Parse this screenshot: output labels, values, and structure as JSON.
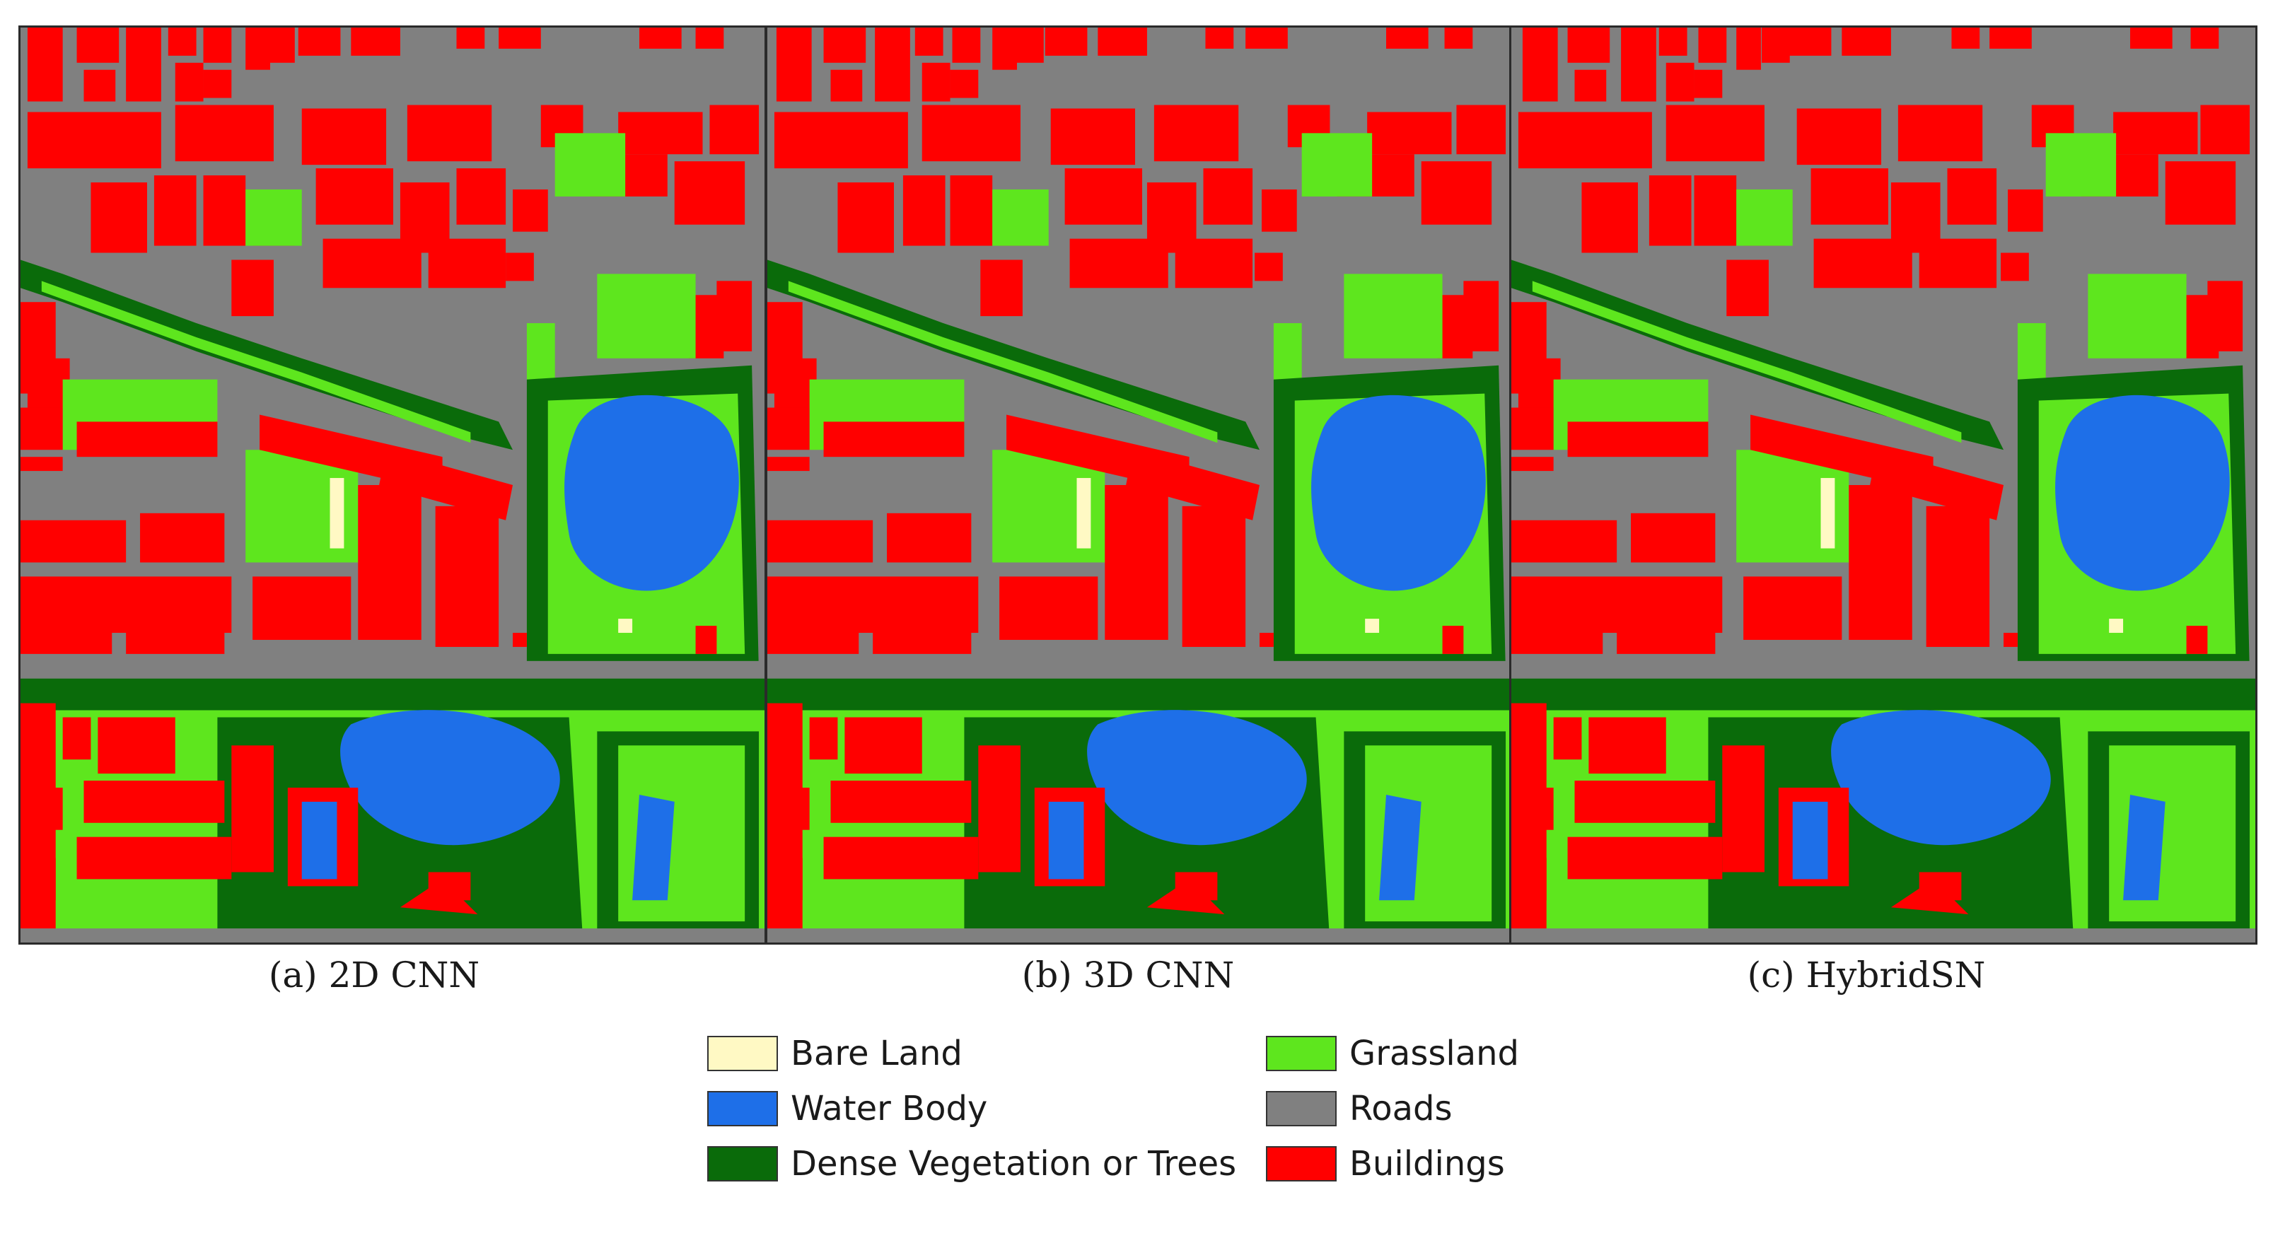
{
  "panels": [
    {
      "caption": "(a) 2D CNN"
    },
    {
      "caption": "(b) 3D CNN"
    },
    {
      "caption": "(c) HybridSN"
    }
  ],
  "legend": {
    "items": [
      {
        "label": "Bare Land",
        "color": "#fff9c4"
      },
      {
        "label": "Water Body",
        "color": "#1e6fe8"
      },
      {
        "label": "Dense Vegetation or Trees",
        "color": "#0a6b0a"
      },
      {
        "label": "Grassland",
        "color": "#5ee61e"
      },
      {
        "label": "Roads",
        "color": "#808080"
      },
      {
        "label": "Buildings",
        "color": "#ff0000"
      }
    ]
  }
}
